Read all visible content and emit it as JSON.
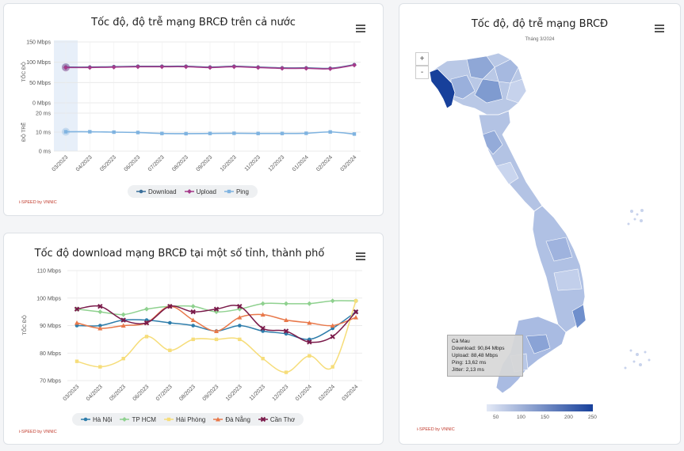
{
  "card1": {
    "title": "Tốc độ, độ trễ mạng BRCĐ trên cả nước",
    "brand": "i-SPEED by VNNIC",
    "speed_axis_title": "TỐC ĐỘ",
    "ping_axis_title": "ĐỘ TRỄ",
    "speed_ticks": [
      "150 Mbps",
      "100 Mbps",
      "50 Mbps",
      "0 Mbps"
    ],
    "ping_ticks": [
      "20 ms",
      "10 ms",
      "0 ms"
    ],
    "legend": [
      "Download",
      "Upload",
      "Ping"
    ]
  },
  "card2": {
    "title": "Tốc độ download mạng BRCĐ tại một số tỉnh, thành phố",
    "brand": "i-SPEED by VNNIC",
    "y_axis_title": "TỐC ĐỘ",
    "legend": [
      "Hà Nội",
      "TP HCM",
      "Hải Phòng",
      "Đà Nẵng",
      "Cần Thơ"
    ]
  },
  "map": {
    "title": "Tốc độ, độ trễ mạng BRCĐ",
    "subtitle": "Tháng 3/2024",
    "zoom_in": "+",
    "zoom_out": "-",
    "brand": "i-SPEED by VNNIC",
    "tooltip": {
      "name": "Cà Mau",
      "download": "Download: 90,84 Mbps",
      "upload": "Upload: 88,48 Mbps",
      "ping": "Ping: 13,62 ms",
      "jitter": "Jitter: 2,13 ms"
    },
    "scale_labels": [
      "50",
      "100",
      "150",
      "200",
      "250"
    ]
  },
  "colors": {
    "download": "#3a6f9a",
    "upload": "#a53a8a",
    "ping": "#7fb3e0",
    "hanoi": "#2e7dab",
    "hcm": "#8fd18f",
    "haiphong": "#f6dd7a",
    "danang": "#e8784a",
    "cantho": "#7a1a4a"
  },
  "chart_data": [
    {
      "type": "line",
      "title": "Tốc độ, độ trễ mạng BRCĐ trên cả nước",
      "x": [
        "03/2023",
        "04/2023",
        "05/2023",
        "06/2023",
        "07/2023",
        "08/2023",
        "09/2023",
        "10/2023",
        "11/2023",
        "12/2023",
        "01/2024",
        "02/2024",
        "03/2024"
      ],
      "speed_ylim": [
        0,
        150
      ],
      "ping_ylim": [
        0,
        20
      ],
      "series": [
        {
          "name": "Download",
          "axis": "speed",
          "values": [
            88,
            88,
            89,
            90,
            90,
            90,
            88,
            90,
            88,
            86,
            86,
            85,
            94
          ]
        },
        {
          "name": "Upload",
          "axis": "speed",
          "values": [
            87,
            87,
            88,
            89,
            89,
            89,
            87,
            89,
            87,
            85,
            85,
            84,
            93
          ]
        },
        {
          "name": "Ping",
          "axis": "ping",
          "values": [
            10.2,
            10.2,
            10.0,
            9.8,
            9.3,
            9.2,
            9.3,
            9.4,
            9.3,
            9.3,
            9.4,
            10.1,
            9.0
          ]
        }
      ]
    },
    {
      "type": "line",
      "title": "Tốc độ download mạng BRCĐ tại một số tỉnh, thành phố",
      "x": [
        "03/2023",
        "04/2023",
        "05/2023",
        "06/2023",
        "07/2023",
        "08/2023",
        "09/2023",
        "10/2023",
        "11/2023",
        "12/2023",
        "01/2024",
        "02/2024",
        "03/2024"
      ],
      "y_ticks": [
        "110 Mbps",
        "100 Mbps",
        "90 Mbps",
        "80 Mbps",
        "70 Mbps"
      ],
      "ylim": [
        70,
        110
      ],
      "series": [
        {
          "name": "Hà Nội",
          "values": [
            90,
            90,
            92,
            92,
            91,
            90,
            88,
            90,
            88,
            87,
            85,
            89,
            95
          ]
        },
        {
          "name": "TP HCM",
          "values": [
            96,
            95,
            94,
            96,
            97,
            97,
            95,
            96,
            98,
            98,
            98,
            99,
            99
          ]
        },
        {
          "name": "Hải Phòng",
          "values": [
            77,
            75,
            78,
            86,
            81,
            85,
            85,
            85,
            78,
            73,
            79,
            75,
            99
          ]
        },
        {
          "name": "Đà Nẵng",
          "values": [
            91,
            89,
            90,
            91,
            97,
            92,
            88,
            93,
            94,
            92,
            91,
            90,
            93
          ]
        },
        {
          "name": "Cần Thơ",
          "values": [
            96,
            97,
            92,
            91,
            97,
            95,
            96,
            97,
            89,
            88,
            84,
            86,
            95
          ]
        }
      ]
    }
  ]
}
